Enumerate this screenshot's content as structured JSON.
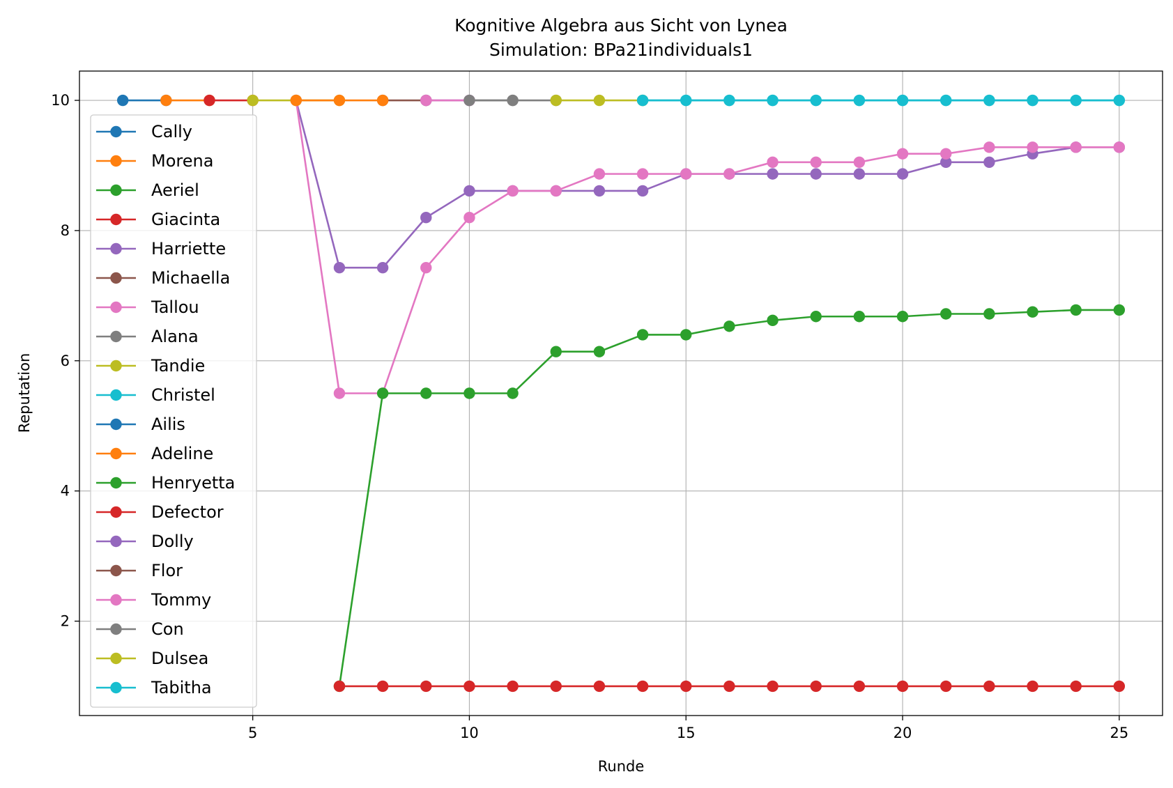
{
  "chart_data": {
    "type": "line",
    "title": "Kognitive Algebra aus Sicht von Lynea",
    "subtitle": "Simulation: BPa21individuals1",
    "xlabel": "Runde",
    "ylabel": "Reputation",
    "xlim": [
      1,
      26
    ],
    "ylim": [
      0.55,
      10.45
    ],
    "xticks": [
      5,
      10,
      15,
      20,
      25
    ],
    "yticks": [
      2,
      4,
      6,
      8,
      10
    ],
    "grid": true,
    "legend_position": "left",
    "series": [
      {
        "name": "Cally",
        "color": "#1f77b4",
        "x": [
          2,
          3
        ],
        "y": [
          10,
          10
        ]
      },
      {
        "name": "Morena",
        "color": "#ff7f0e",
        "x": [
          3,
          4
        ],
        "y": [
          10,
          10
        ]
      },
      {
        "name": "Aeriel",
        "color": "#2ca02c",
        "x": [],
        "y": []
      },
      {
        "name": "Giacinta",
        "color": "#d62728",
        "x": [
          4,
          5
        ],
        "y": [
          10,
          10
        ]
      },
      {
        "name": "Harriette",
        "color": "#9467bd",
        "x": [
          6,
          7,
          8,
          9,
          10,
          11,
          12,
          13,
          14,
          15,
          16,
          17,
          18,
          19,
          20,
          21,
          22,
          23,
          24,
          25
        ],
        "y": [
          10,
          7.43,
          7.43,
          8.2,
          8.61,
          8.61,
          8.61,
          8.61,
          8.61,
          8.87,
          8.87,
          8.87,
          8.87,
          8.87,
          8.87,
          9.05,
          9.05,
          9.18,
          9.28,
          9.28
        ]
      },
      {
        "name": "Michaella",
        "color": "#8c564b",
        "x": [
          8,
          9
        ],
        "y": [
          10,
          10
        ]
      },
      {
        "name": "Tallou",
        "color": "#e377c2",
        "x": [
          6,
          7,
          8,
          9,
          10,
          11,
          12,
          13,
          14,
          15,
          16,
          17,
          18,
          19,
          20,
          21,
          22,
          23,
          24,
          25
        ],
        "y": [
          10,
          5.5,
          5.5,
          7.43,
          8.2,
          8.61,
          8.61,
          8.87,
          8.87,
          8.87,
          8.87,
          9.05,
          9.05,
          9.05,
          9.18,
          9.18,
          9.28,
          9.28,
          9.28,
          9.28
        ]
      },
      {
        "name": "Alana",
        "color": "#7f7f7f",
        "x": [
          10,
          11,
          12
        ],
        "y": [
          10,
          10,
          10
        ]
      },
      {
        "name": "Tandie",
        "color": "#bcbd22",
        "x": [
          5,
          6,
          7
        ],
        "y": [
          10,
          10,
          10
        ]
      },
      {
        "name": "Christel",
        "color": "#17becf",
        "x": [
          14,
          15,
          16,
          17,
          18,
          19,
          20,
          21,
          22,
          23,
          24,
          25
        ],
        "y": [
          10,
          10,
          10,
          10,
          10,
          10,
          10,
          10,
          10,
          10,
          10,
          10
        ]
      },
      {
        "name": "Ailis",
        "color": "#1f77b4",
        "x": [],
        "y": []
      },
      {
        "name": "Adeline",
        "color": "#ff7f0e",
        "x": [
          6,
          7,
          8
        ],
        "y": [
          10,
          10,
          10
        ]
      },
      {
        "name": "Henryetta",
        "color": "#2ca02c",
        "x": [
          7,
          8,
          9,
          10,
          11,
          12,
          13,
          14,
          15,
          16,
          17,
          18,
          19,
          20,
          21,
          22,
          23,
          24,
          25
        ],
        "y": [
          1,
          5.5,
          5.5,
          5.5,
          5.5,
          6.14,
          6.14,
          6.4,
          6.4,
          6.53,
          6.62,
          6.68,
          6.68,
          6.68,
          6.72,
          6.72,
          6.75,
          6.78,
          6.78
        ]
      },
      {
        "name": "Defector",
        "color": "#d62728",
        "x": [
          7,
          8,
          9,
          10,
          11,
          12,
          13,
          14,
          15,
          16,
          17,
          18,
          19,
          20,
          21,
          22,
          23,
          24,
          25
        ],
        "y": [
          1,
          1,
          1,
          1,
          1,
          1,
          1,
          1,
          1,
          1,
          1,
          1,
          1,
          1,
          1,
          1,
          1,
          1,
          1
        ]
      },
      {
        "name": "Dolly",
        "color": "#9467bd",
        "x": [
          9,
          10
        ],
        "y": [
          10,
          10
        ]
      },
      {
        "name": "Flor",
        "color": "#8c564b",
        "x": [],
        "y": []
      },
      {
        "name": "Tommy",
        "color": "#e377c2",
        "x": [
          9,
          10
        ],
        "y": [
          10,
          10
        ]
      },
      {
        "name": "Con",
        "color": "#7f7f7f",
        "x": [
          10,
          11
        ],
        "y": [
          10,
          10
        ]
      },
      {
        "name": "Dulsea",
        "color": "#bcbd22",
        "x": [
          12,
          13,
          14
        ],
        "y": [
          10,
          10,
          10
        ]
      },
      {
        "name": "Tabitha",
        "color": "#17becf",
        "x": [
          14,
          15,
          16,
          17,
          18,
          19,
          20,
          21,
          22,
          23,
          24,
          25
        ],
        "y": [
          10,
          10,
          10,
          10,
          10,
          10,
          10,
          10,
          10,
          10,
          10,
          10
        ]
      }
    ]
  }
}
